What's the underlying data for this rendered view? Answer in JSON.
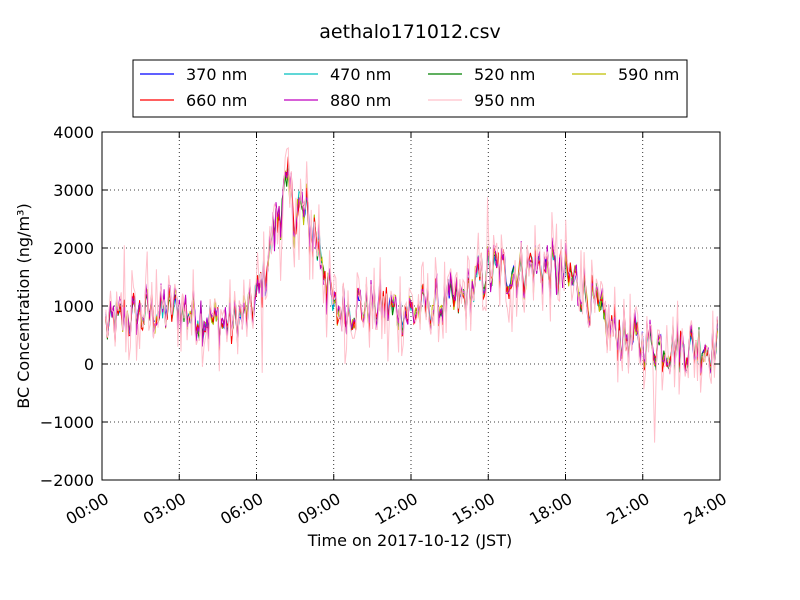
{
  "chart_data": {
    "type": "line",
    "title": "aethalo171012.csv",
    "xlabel": "Time on 2017-10-12 (JST)",
    "ylabel": "BC Concentration (ng/m³)",
    "ylim": [
      -2000,
      4000
    ],
    "xlim_hours": [
      0,
      24
    ],
    "xticks": [
      "00:00",
      "03:00",
      "06:00",
      "09:00",
      "12:00",
      "15:00",
      "18:00",
      "21:00",
      "24:00"
    ],
    "yticks": [
      "−2000",
      "−1000",
      "0",
      "1000",
      "2000",
      "3000",
      "4000"
    ],
    "grid": true,
    "legend_position": "top",
    "baseline_hours": [
      0,
      1,
      2,
      3,
      4,
      5,
      5.8,
      6.3,
      7,
      7.8,
      8.5,
      9,
      10,
      11,
      12,
      13,
      14,
      15,
      16,
      17,
      18,
      18.7,
      19.5,
      20.5,
      22,
      24
    ],
    "baseline_values": [
      650,
      800,
      900,
      950,
      800,
      700,
      900,
      1500,
      2900,
      2600,
      2000,
      900,
      1000,
      950,
      900,
      1000,
      1100,
      1600,
      1600,
      1700,
      1500,
      1300,
      700,
      400,
      300,
      300
    ],
    "series": [
      {
        "name": "370 nm",
        "color": "#0000ff"
      },
      {
        "name": "470 nm",
        "color": "#00bfbf"
      },
      {
        "name": "520 nm",
        "color": "#008000"
      },
      {
        "name": "590 nm",
        "color": "#bfbf00"
      },
      {
        "name": "660 nm",
        "color": "#ff0000"
      },
      {
        "name": "880 nm",
        "color": "#bf00bf"
      },
      {
        "name": "950 nm",
        "color": "#ffc0cb"
      }
    ]
  }
}
